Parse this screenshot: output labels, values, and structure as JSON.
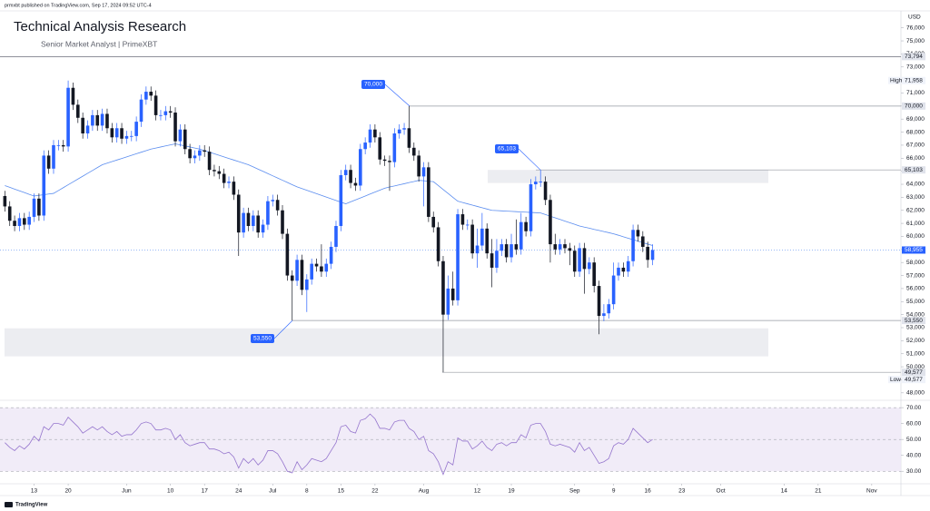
{
  "header": {
    "publisher": "prmxbt published on TradingView.com, Sep 17, 2024 09:52 UTC-4",
    "footer": "TradingView"
  },
  "chart_data": [
    {
      "type": "candlestick",
      "title": "Technical Analysis Research",
      "subtitle": "Senior Market Analyst | PrimeXBT",
      "currency": "USD",
      "xlim": [
        -1,
        184
      ],
      "xticks": [
        {
          "value": 6,
          "label": "13"
        },
        {
          "value": 13,
          "label": "20"
        },
        {
          "value": 25,
          "label": "Jun"
        },
        {
          "value": 34,
          "label": "10"
        },
        {
          "value": 41,
          "label": "17"
        },
        {
          "value": 48,
          "label": "24"
        },
        {
          "value": 55,
          "label": "Jul"
        },
        {
          "value": 62,
          "label": "8"
        },
        {
          "value": 69,
          "label": "15"
        },
        {
          "value": 76,
          "label": "22"
        },
        {
          "value": 86,
          "label": "Aug"
        },
        {
          "value": 97,
          "label": "12"
        },
        {
          "value": 104,
          "label": "19"
        },
        {
          "value": 117,
          "label": "Sep"
        },
        {
          "value": 125,
          "label": "9"
        },
        {
          "value": 132,
          "label": "16"
        },
        {
          "value": 139,
          "label": "23"
        },
        {
          "value": 147,
          "label": "Oct"
        },
        {
          "value": 160,
          "label": "14"
        },
        {
          "value": 167,
          "label": "21"
        },
        {
          "value": 178,
          "label": "Nov"
        }
      ],
      "ylim": [
        47500,
        77300
      ],
      "yticks": [
        {
          "value": 48000,
          "label": "48,000"
        },
        {
          "value": 49000,
          "label": "49,000"
        },
        {
          "value": 50000,
          "label": "50,000"
        },
        {
          "value": 51000,
          "label": "51,000"
        },
        {
          "value": 52000,
          "label": "52,000"
        },
        {
          "value": 53000,
          "label": "53,000"
        },
        {
          "value": 54000,
          "label": "54,000"
        },
        {
          "value": 55000,
          "label": "55,000"
        },
        {
          "value": 56000,
          "label": "56,000"
        },
        {
          "value": 57000,
          "label": "57,000"
        },
        {
          "value": 58000,
          "label": "58,000"
        },
        {
          "value": 59000,
          "label": "59,000"
        },
        {
          "value": 60000,
          "label": "60,000"
        },
        {
          "value": 61000,
          "label": "61,000"
        },
        {
          "value": 62000,
          "label": "62,000"
        },
        {
          "value": 63000,
          "label": "63,000"
        },
        {
          "value": 64000,
          "label": "64,000"
        },
        {
          "value": 65000,
          "label": "65,000"
        },
        {
          "value": 66000,
          "label": "66,000"
        },
        {
          "value": 67000,
          "label": "67,000"
        },
        {
          "value": 68000,
          "label": "68,000"
        },
        {
          "value": 69000,
          "label": "69,000"
        },
        {
          "value": 70000,
          "label": "70,000"
        },
        {
          "value": 71000,
          "label": "71,000"
        },
        {
          "value": 72000,
          "label": "72,000"
        },
        {
          "value": 73000,
          "label": "73,000"
        },
        {
          "value": 74000,
          "label": "74,000"
        },
        {
          "value": 75000,
          "label": "75,000"
        },
        {
          "value": 76000,
          "label": "76,000"
        }
      ],
      "up_color": "#2962ff",
      "down_color": "#131722",
      "open": [
        63100,
        62300,
        61200,
        60800,
        61400,
        60900,
        61500,
        62900,
        61600,
        66200,
        65200,
        67000,
        67000,
        66900,
        71400,
        70100,
        69100,
        67900,
        68500,
        69300,
        68500,
        69400,
        68300,
        67600,
        68300,
        67500,
        67700,
        67700,
        68800,
        70500,
        71100,
        70800,
        69300,
        69300,
        69600,
        69500,
        67300,
        68200,
        66700,
        66000,
        66200,
        66600,
        66500,
        65100,
        65000,
        64800,
        64100,
        64200,
        63200,
        60300,
        61800,
        60800,
        61600,
        60300,
        60900,
        62700,
        62800,
        62000,
        60200,
        57000,
        56600,
        58200,
        55900,
        56700,
        57900,
        57700,
        57300,
        57900,
        59200,
        60800,
        64700,
        65100,
        64100,
        63900,
        66700,
        67200,
        68200,
        67600,
        65900,
        65800,
        65700,
        67900,
        68200,
        68300,
        66800,
        66200,
        64600,
        65300,
        61500,
        60700,
        58100,
        54000,
        56000,
        55100,
        61700,
        60900,
        60900,
        58700,
        59300,
        60600,
        58700,
        57600,
        58900,
        59400,
        58400,
        59400,
        59000,
        61100,
        60400,
        64000,
        64200,
        64200,
        62800,
        59400,
        59000,
        59400,
        59100,
        58900,
        57300,
        59100,
        57500,
        58000,
        56200,
        53900,
        54100,
        54800,
        57000,
        57600,
        57300,
        58100,
        60500,
        60000,
        59200,
        58200
      ],
      "high": [
        63500,
        62700,
        61600,
        61800,
        61800,
        61900,
        63300,
        63300,
        66600,
        66600,
        67400,
        67400,
        67400,
        71958,
        71800,
        70500,
        69500,
        68900,
        69700,
        69700,
        69800,
        69800,
        68700,
        68700,
        68700,
        68100,
        68100,
        69200,
        70900,
        71500,
        71500,
        71200,
        69700,
        70000,
        70000,
        69900,
        68600,
        68600,
        67100,
        66600,
        67000,
        67000,
        66900,
        65500,
        65400,
        65200,
        64600,
        64600,
        63600,
        62200,
        62200,
        62000,
        62000,
        61300,
        63100,
        63200,
        63200,
        62400,
        60600,
        57400,
        58600,
        58600,
        57100,
        58300,
        58300,
        59400,
        58300,
        59600,
        61200,
        65100,
        65500,
        65500,
        64500,
        67100,
        67600,
        68600,
        68600,
        68000,
        66200,
        66200,
        68300,
        68600,
        68700,
        70000,
        67200,
        66600,
        65700,
        65700,
        61900,
        61100,
        58500,
        57000,
        57300,
        62100,
        62100,
        61300,
        61300,
        60600,
        61800,
        61000,
        59800,
        59800,
        59800,
        59800,
        60200,
        61300,
        61800,
        61500,
        64400,
        64600,
        65103,
        64600,
        63200,
        60200,
        59800,
        59800,
        59500,
        59300,
        59500,
        59500,
        58400,
        58400,
        56600,
        54800,
        55200,
        58000,
        58000,
        58000,
        58500,
        60900,
        60900,
        60400,
        59600,
        59400
      ],
      "low": [
        61900,
        60800,
        60400,
        60400,
        60500,
        60500,
        61100,
        61200,
        61200,
        64800,
        64800,
        66600,
        66500,
        66500,
        69700,
        68700,
        67500,
        67500,
        68100,
        68100,
        68100,
        67900,
        67200,
        67200,
        67100,
        67100,
        67300,
        67300,
        68400,
        70100,
        70400,
        68900,
        68900,
        68900,
        69100,
        66900,
        66900,
        66300,
        65600,
        65600,
        65800,
        66100,
        64700,
        64600,
        64400,
        63700,
        63700,
        62800,
        58500,
        59900,
        60400,
        60400,
        59900,
        59900,
        60500,
        62300,
        61600,
        59800,
        56600,
        53550,
        56200,
        55500,
        54200,
        56300,
        57300,
        56900,
        56900,
        57500,
        58800,
        60400,
        64300,
        63700,
        63500,
        63500,
        66300,
        66800,
        67200,
        65500,
        65400,
        63500,
        65300,
        67500,
        67800,
        66400,
        65800,
        64200,
        62300,
        61100,
        60300,
        57700,
        49577,
        53600,
        54700,
        54700,
        60500,
        60500,
        58300,
        57600,
        58900,
        58300,
        56100,
        57200,
        58500,
        58000,
        58000,
        58600,
        58600,
        60000,
        60000,
        63600,
        63800,
        62400,
        58000,
        58600,
        58600,
        58700,
        57800,
        56900,
        56900,
        55600,
        57100,
        55700,
        52500,
        53500,
        53700,
        54400,
        56600,
        56900,
        56900,
        57700,
        59600,
        58800,
        57600,
        57800
      ],
      "close": [
        62300,
        61200,
        60800,
        61400,
        60900,
        61500,
        62900,
        61600,
        66200,
        65200,
        67000,
        67000,
        66900,
        71400,
        70100,
        69100,
        67900,
        68500,
        69300,
        68500,
        69400,
        68300,
        67600,
        68300,
        67500,
        67700,
        67700,
        68800,
        70500,
        71100,
        70800,
        69300,
        69300,
        69600,
        69500,
        67300,
        68200,
        66700,
        66000,
        66200,
        66600,
        66500,
        65100,
        65000,
        64800,
        64100,
        64200,
        63200,
        60300,
        61800,
        60800,
        61600,
        60300,
        60900,
        62700,
        62800,
        62000,
        60200,
        57000,
        56600,
        58200,
        55900,
        56700,
        57900,
        57700,
        57300,
        57900,
        59200,
        60800,
        64700,
        65100,
        64100,
        63900,
        66700,
        67200,
        68200,
        67600,
        65900,
        65800,
        65700,
        67900,
        68200,
        68300,
        66800,
        66200,
        64600,
        65300,
        61500,
        60700,
        58100,
        54000,
        56000,
        55100,
        61700,
        60900,
        60900,
        58700,
        59300,
        60600,
        58700,
        57600,
        58900,
        59400,
        58400,
        59400,
        59000,
        61100,
        60400,
        64000,
        64200,
        64200,
        62800,
        59400,
        59000,
        59400,
        59100,
        58900,
        57300,
        59100,
        57500,
        58000,
        56200,
        53900,
        54100,
        54800,
        57000,
        57600,
        57300,
        58100,
        60500,
        60000,
        59200,
        58200,
        58955
      ],
      "ma": {
        "color": "#5b8def",
        "values": [
          63900,
          63770,
          63630,
          63500,
          63370,
          63230,
          63100,
          63150,
          63200,
          63250,
          63300,
          63520,
          63740,
          63960,
          64180,
          64400,
          64620,
          64840,
          65060,
          65280,
          65500,
          65620,
          65740,
          65860,
          65980,
          66100,
          66220,
          66340,
          66460,
          66580,
          66700,
          66780,
          66860,
          66940,
          67020,
          67100,
          67020,
          66940,
          66860,
          66780,
          66700,
          66580,
          66460,
          66340,
          66220,
          66100,
          65980,
          65860,
          65740,
          65620,
          65500,
          65330,
          65160,
          64990,
          64820,
          64650,
          64480,
          64310,
          64140,
          63970,
          63800,
          63670,
          63540,
          63410,
          63280,
          63150,
          63020,
          62890,
          62760,
          62630,
          62500,
          62650,
          62800,
          62950,
          63100,
          63250,
          63400,
          63550,
          63700,
          63790,
          63870,
          63960,
          64040,
          64130,
          64210,
          64300,
          64270,
          64230,
          64200,
          63900,
          63600,
          63300,
          63000,
          62700,
          62600,
          62500,
          62400,
          62300,
          62200,
          62100,
          62000,
          61980,
          61960,
          61940,
          61920,
          61900,
          61880,
          61860,
          61840,
          61820,
          61800,
          61675,
          61550,
          61425,
          61300,
          61175,
          61050,
          60925,
          60800,
          60710,
          60630,
          60540,
          60460,
          60370,
          60290,
          60200,
          60090,
          59970,
          59860,
          59750,
          59640,
          59520,
          59410,
          59300
        ]
      },
      "zones": [
        {
          "low": 64100,
          "high": 65100
        },
        {
          "low": 50800,
          "high": 52950
        }
      ],
      "levels": [
        {
          "value": 73794,
          "label": "73,794"
        },
        {
          "value": 70000,
          "label": "70,000"
        },
        {
          "value": 65103,
          "label": "65,103"
        },
        {
          "value": 58955,
          "label": "58,955"
        },
        {
          "value": 53550,
          "label": "53,550"
        },
        {
          "value": 49577,
          "label": "49,577"
        }
      ],
      "high_mark": {
        "tag": "High",
        "value": 71958,
        "label": "71,958"
      },
      "low_mark": {
        "tag": "Low",
        "value": 49577,
        "label": "49,577"
      },
      "annotations": [
        {
          "value": 70000,
          "label": "70,000"
        },
        {
          "value": 65103,
          "label": "65,103"
        },
        {
          "value": 53550,
          "label": "53,550"
        }
      ]
    },
    {
      "type": "line",
      "xlim": [
        -1,
        184
      ],
      "ylim": [
        25,
        73.5
      ],
      "color": "#9575cd",
      "band_color": "#ede7f6",
      "yticks": [
        {
          "value": 30,
          "label": "30.00"
        },
        {
          "value": 40,
          "label": "40.00"
        },
        {
          "value": 50,
          "label": "50.00"
        },
        {
          "value": 60,
          "label": "60.00"
        },
        {
          "value": 70,
          "label": "70.00"
        }
      ],
      "values": [
        48,
        45,
        43,
        46,
        44,
        47,
        52,
        49,
        58,
        56,
        60,
        60,
        59,
        64,
        61,
        58,
        54,
        56,
        58,
        56,
        58,
        55,
        53,
        55,
        52,
        53,
        53,
        56,
        60,
        61,
        60,
        56,
        56,
        57,
        56,
        50,
        53,
        48,
        46,
        47,
        48,
        48,
        44,
        44,
        43,
        41,
        42,
        39,
        32,
        38,
        35,
        38,
        34,
        37,
        43,
        43,
        41,
        36,
        30,
        29,
        36,
        31,
        34,
        38,
        37,
        36,
        38,
        43,
        48,
        58,
        59,
        55,
        54,
        62,
        63,
        66,
        63,
        57,
        57,
        56,
        61,
        62,
        62,
        57,
        55,
        50,
        52,
        43,
        41,
        36,
        28,
        36,
        34,
        51,
        49,
        49,
        44,
        46,
        49,
        45,
        43,
        47,
        48,
        46,
        48,
        48,
        53,
        51,
        59,
        60,
        60,
        55,
        47,
        46,
        47,
        46,
        45,
        42,
        48,
        43,
        45,
        40,
        35,
        36,
        38,
        46,
        48,
        47,
        50,
        57,
        54,
        51,
        48,
        50
      ]
    }
  ]
}
